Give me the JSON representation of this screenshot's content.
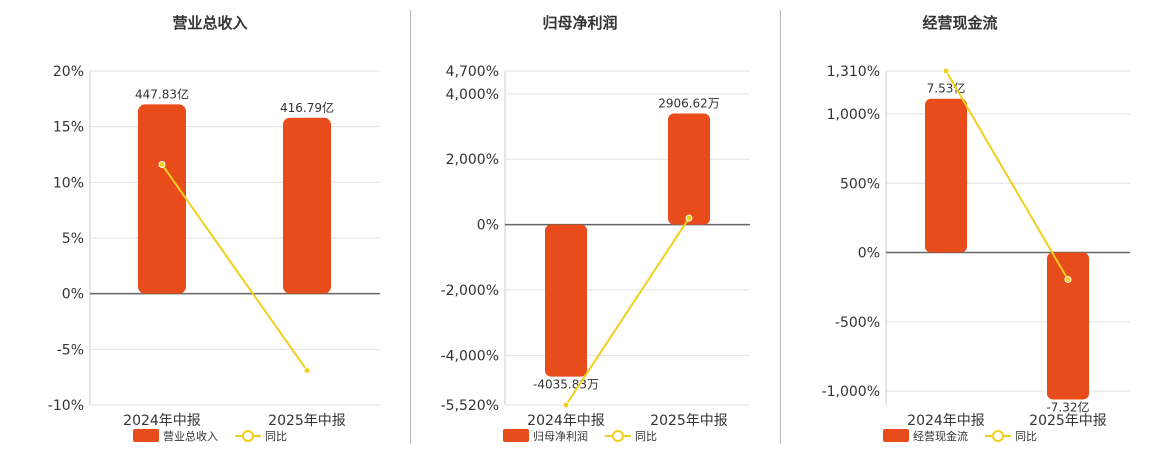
{
  "colors": {
    "bar": "#e84c1a",
    "line": "#f2cf1d",
    "grid": "#e2e2e2",
    "axis": "#666666",
    "text": "#333333"
  },
  "legend": {
    "series_label": "同比"
  },
  "chart_data": [
    {
      "type": "bar",
      "title": "营业总收入",
      "categories": [
        "2024年中报",
        "2025年中报"
      ],
      "bar_legend": "营业总收入",
      "bar_labels": [
        "447.83亿",
        "416.79亿"
      ],
      "ylim": [
        -10,
        20
      ],
      "yticks": [
        -10,
        -5,
        0,
        5,
        10,
        15,
        20
      ],
      "ytick_labels": [
        "-10%",
        "-5%",
        "0%",
        "5%",
        "10%",
        "15%",
        "20%"
      ],
      "bar_values": [
        17.0,
        15.8
      ],
      "series": [
        {
          "name": "同比",
          "type": "line",
          "values": [
            11.6,
            -6.9
          ]
        }
      ],
      "grid": true,
      "legend_position": "bottom"
    },
    {
      "type": "bar",
      "title": "归母净利润",
      "categories": [
        "2024年中报",
        "2025年中报"
      ],
      "bar_legend": "归母净利润",
      "bar_labels": [
        "-4035.83万",
        "2906.62万"
      ],
      "ylim": [
        -5520,
        4700
      ],
      "yticks": [
        -5520,
        -4000,
        -2000,
        0,
        2000,
        4000,
        4700
      ],
      "ytick_labels": [
        "-5,520%",
        "-4,000%",
        "-2,000%",
        "0%",
        "2,000%",
        "4,000%",
        "4,700%"
      ],
      "bar_values": [
        -4650,
        3400
      ],
      "series": [
        {
          "name": "同比",
          "type": "line",
          "values": [
            -5520,
            200
          ]
        }
      ],
      "grid": true,
      "legend_position": "bottom"
    },
    {
      "type": "bar",
      "title": "经营现金流",
      "categories": [
        "2024年中报",
        "2025年中报"
      ],
      "bar_legend": "经营现金流",
      "bar_labels": [
        "7.53亿",
        "-7.32亿"
      ],
      "ylim": [
        -1100,
        1310
      ],
      "yticks": [
        -1000,
        -500,
        0,
        500,
        1000,
        1310
      ],
      "ytick_labels": [
        "-1,000%",
        "-500%",
        "0%",
        "500%",
        "1,000%",
        "1,310%"
      ],
      "bar_values": [
        1110,
        -1060
      ],
      "series": [
        {
          "name": "同比",
          "type": "line",
          "values": [
            1310,
            -195
          ]
        }
      ],
      "grid": true,
      "legend_position": "bottom"
    }
  ]
}
